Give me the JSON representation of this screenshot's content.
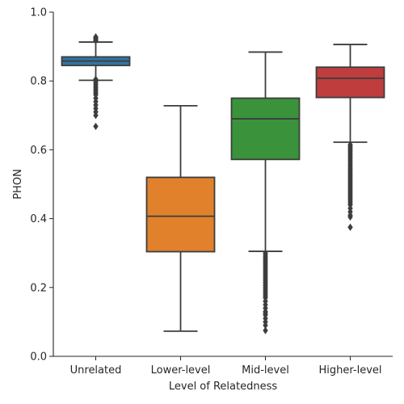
{
  "chart_data": {
    "type": "box",
    "title": "",
    "xlabel": "Level of Relatedness",
    "ylabel": "PHON",
    "ylim": [
      0.0,
      1.0
    ],
    "yticks": [
      0.0,
      0.2,
      0.4,
      0.6,
      0.8,
      1.0
    ],
    "ytick_labels": [
      "0.0",
      "0.2",
      "0.4",
      "0.6",
      "0.8",
      "1.0"
    ],
    "categories": [
      "Unrelated",
      "Lower-level",
      "Mid-level",
      "Higher-level"
    ],
    "series": [
      {
        "name": "Unrelated",
        "color": "#3274a1",
        "whisker_low": 0.802,
        "q1": 0.845,
        "median": 0.858,
        "q3": 0.87,
        "whisker_high": 0.913,
        "outliers": [
          0.917,
          0.92,
          0.923,
          0.926,
          0.928,
          0.805,
          0.8,
          0.795,
          0.79,
          0.785,
          0.78,
          0.775,
          0.77,
          0.765,
          0.76,
          0.75,
          0.74,
          0.73,
          0.72,
          0.71,
          0.7,
          0.668
        ]
      },
      {
        "name": "Lower-level",
        "color": "#e1812c",
        "whisker_low": 0.073,
        "q1": 0.304,
        "median": 0.407,
        "q3": 0.52,
        "whisker_high": 0.728,
        "outliers": []
      },
      {
        "name": "Mid-level",
        "color": "#3a923a",
        "whisker_low": 0.305,
        "q1": 0.572,
        "median": 0.69,
        "q3": 0.75,
        "whisker_high": 0.884,
        "outliers": [
          0.3,
          0.295,
          0.29,
          0.285,
          0.28,
          0.275,
          0.27,
          0.265,
          0.26,
          0.255,
          0.25,
          0.245,
          0.24,
          0.235,
          0.23,
          0.225,
          0.22,
          0.215,
          0.21,
          0.205,
          0.2,
          0.195,
          0.19,
          0.185,
          0.18,
          0.175,
          0.17,
          0.16,
          0.15,
          0.14,
          0.13,
          0.125,
          0.12,
          0.11,
          0.1,
          0.09,
          0.075
        ]
      },
      {
        "name": "Higher-level",
        "color": "#c03d3e",
        "whisker_low": 0.622,
        "q1": 0.752,
        "median": 0.808,
        "q3": 0.84,
        "whisker_high": 0.906,
        "outliers": [
          0.615,
          0.61,
          0.605,
          0.6,
          0.595,
          0.59,
          0.585,
          0.58,
          0.575,
          0.57,
          0.565,
          0.56,
          0.555,
          0.55,
          0.545,
          0.54,
          0.535,
          0.53,
          0.525,
          0.52,
          0.515,
          0.51,
          0.505,
          0.5,
          0.495,
          0.49,
          0.485,
          0.48,
          0.475,
          0.47,
          0.465,
          0.46,
          0.455,
          0.45,
          0.445,
          0.44,
          0.43,
          0.42,
          0.41,
          0.405,
          0.375
        ]
      }
    ]
  }
}
